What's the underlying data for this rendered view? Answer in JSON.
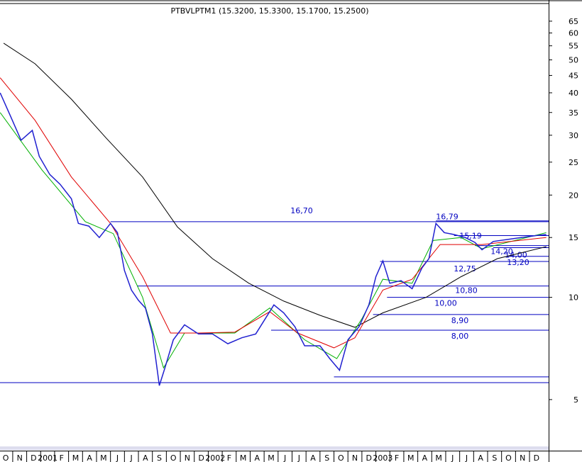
{
  "chart_data": {
    "type": "line",
    "title": "PTBVLPTM1 (15.3200, 15.3300, 15.1700, 15.2500)",
    "log_scale": true,
    "grid": false,
    "xlim": [
      -0.41,
      38.87
    ],
    "ylim": [
      3.64,
      72.2
    ],
    "yticks": [
      5,
      10,
      15,
      20,
      25,
      30,
      35,
      40,
      45,
      50,
      55,
      60,
      65
    ],
    "xticks": [
      {
        "value": 0,
        "label": "O"
      },
      {
        "value": 1,
        "label": "N"
      },
      {
        "value": 2,
        "label": "D"
      },
      {
        "value": 3,
        "label": "2001"
      },
      {
        "value": 4,
        "label": "F"
      },
      {
        "value": 5,
        "label": "M"
      },
      {
        "value": 6,
        "label": "A"
      },
      {
        "value": 7,
        "label": "M"
      },
      {
        "value": 8,
        "label": "J"
      },
      {
        "value": 9,
        "label": "J"
      },
      {
        "value": 10,
        "label": "A"
      },
      {
        "value": 11,
        "label": "S"
      },
      {
        "value": 12,
        "label": "O"
      },
      {
        "value": 13,
        "label": "N"
      },
      {
        "value": 14,
        "label": "D"
      },
      {
        "value": 15,
        "label": "2002"
      },
      {
        "value": 16,
        "label": "F"
      },
      {
        "value": 17,
        "label": "M"
      },
      {
        "value": 18,
        "label": "A"
      },
      {
        "value": 19,
        "label": "M"
      },
      {
        "value": 20,
        "label": "J"
      },
      {
        "value": 21,
        "label": "J"
      },
      {
        "value": 22,
        "label": "A"
      },
      {
        "value": 23,
        "label": "S"
      },
      {
        "value": 24,
        "label": "O"
      },
      {
        "value": 25,
        "label": "N"
      },
      {
        "value": 26,
        "label": "D"
      },
      {
        "value": 27,
        "label": "2003"
      },
      {
        "value": 28,
        "label": "F"
      },
      {
        "value": 29,
        "label": "M"
      },
      {
        "value": 30,
        "label": "A"
      },
      {
        "value": 31,
        "label": "M"
      },
      {
        "value": 32,
        "label": "J"
      },
      {
        "value": 33,
        "label": "J"
      },
      {
        "value": 34,
        "label": "A"
      },
      {
        "value": 35,
        "label": "S"
      },
      {
        "value": 36,
        "label": "O"
      },
      {
        "value": 37,
        "label": "N"
      },
      {
        "value": 38,
        "label": "D"
      }
    ],
    "series": [
      {
        "color": "#2020d0",
        "x": [
          -0.4,
          0.36,
          1.1,
          1.9,
          2.4,
          3.15,
          3.9,
          4.7,
          5.2,
          5.95,
          6.7,
          7.5,
          8.0,
          8.5,
          9.0,
          9.5,
          10.0,
          10.5,
          11.0,
          11.4,
          12.0,
          12.8,
          13.8,
          14.8,
          15.9,
          16.9,
          17.9,
          19.2,
          19.9,
          20.7,
          21.4,
          22.5,
          23.2,
          23.9,
          24.5,
          25.3,
          26.0,
          26.5,
          27.0,
          27.5,
          28.3,
          29.1,
          29.8,
          30.3,
          30.8,
          31.4,
          32.1,
          32.9,
          33.6,
          34.1,
          34.9,
          35.9,
          36.9,
          38.0,
          38.7
        ],
        "values": [
          40,
          34,
          29,
          31,
          26,
          23,
          21.5,
          19.5,
          16.5,
          16.2,
          15,
          16.5,
          15.5,
          12,
          10.5,
          9.8,
          9.3,
          7.8,
          5.5,
          6.2,
          7.5,
          8.3,
          7.8,
          7.8,
          7.3,
          7.6,
          7.8,
          9.5,
          9.0,
          8.2,
          7.2,
          7.2,
          6.6,
          6.1,
          7.5,
          8.2,
          9.5,
          11.5,
          12.8,
          11.0,
          11.2,
          10.6,
          12.2,
          13.0,
          16.5,
          15.5,
          15.3,
          15.0,
          14.5,
          13.8,
          14.6,
          14.8,
          15.0,
          15.2,
          15.3
        ]
      },
      {
        "color": "#e00000",
        "x": [
          -0.4,
          2.1,
          4.7,
          7.5,
          9.8,
          11.8,
          13.8,
          16.4,
          18.9,
          20.9,
          23.5,
          25.0,
          27.0,
          29.1,
          31.1,
          34.1,
          38.7
        ],
        "values": [
          44.3,
          33.2,
          22.6,
          16.5,
          11.5,
          7.85,
          7.85,
          7.9,
          9.07,
          7.85,
          7.1,
          7.6,
          10.5,
          11.3,
          14.3,
          14.3,
          15.0
        ]
      },
      {
        "color": "#00b000",
        "x": [
          -0.4,
          2.6,
          5.7,
          7.7,
          9.8,
          11.3,
          12.8,
          16.4,
          18.9,
          21.4,
          23.7,
          25.5,
          27.0,
          29.1,
          30.6,
          32.6,
          34.1,
          38.7
        ],
        "values": [
          35,
          23.7,
          16.7,
          15.4,
          10.0,
          6.2,
          7.85,
          7.85,
          9.3,
          7.5,
          6.6,
          8.65,
          11.3,
          11.0,
          14.7,
          15.0,
          13.9,
          15.5
        ]
      },
      {
        "color": "#000000",
        "x": [
          -0.15,
          2.1,
          4.7,
          7.2,
          9.8,
          12.3,
          14.8,
          17.4,
          19.9,
          22.5,
          25.0,
          27.0,
          30.1,
          32.6,
          35.2,
          38.7
        ],
        "values": [
          56,
          48.7,
          38.3,
          29.4,
          22.6,
          16.1,
          13.0,
          11.0,
          9.75,
          8.85,
          8.16,
          9.0,
          10.0,
          11.5,
          13.0,
          14.1
        ]
      }
    ],
    "levels": [
      {
        "value": 16.7,
        "label": "16,70",
        "from": 7.5
      },
      {
        "value": 16.79,
        "label": "16,79",
        "from": 30.8
      },
      {
        "value": 15.19,
        "label": "15,19",
        "from": 32.1
      },
      {
        "value": 14.2,
        "label": "14,20",
        "from": 33.6
      },
      {
        "value": 14.0,
        "label": "14,00",
        "from": 34.9
      },
      {
        "value": 13.2,
        "label": "13,20",
        "from": 35.9
      },
      {
        "value": 12.75,
        "label": "12,75",
        "from": 26.8
      },
      {
        "value": 10.8,
        "label": "10,80",
        "from": 9.4
      },
      {
        "value": 10.0,
        "label": "10,00",
        "from": 27.3
      },
      {
        "value": 8.9,
        "label": "8,90",
        "from": 26.3
      },
      {
        "value": 8.0,
        "label": "8,00",
        "from": 19.0
      },
      {
        "value": 5.83,
        "from": 23.5
      },
      {
        "value": 5.61,
        "from": -0.41
      }
    ]
  }
}
